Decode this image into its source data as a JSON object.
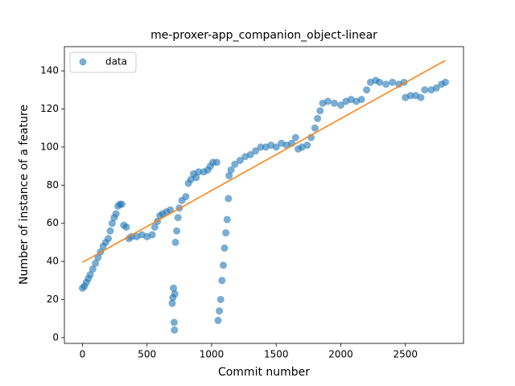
{
  "chart_data": {
    "type": "scatter",
    "title": "me-proxer-app_companion_object-linear",
    "x_label": "Commit number",
    "y_label": "Number of instance of a feature",
    "xlim": [
      -140,
      2950
    ],
    "ylim": [
      -3,
      152.7
    ],
    "xticks": [
      0,
      500,
      1000,
      1500,
      2000,
      2500
    ],
    "yticks": [
      0,
      20,
      40,
      60,
      80,
      100,
      120,
      140
    ],
    "legend": "upper left",
    "series": [
      {
        "name": "data",
        "color": "#1f77b4",
        "x": [
          0,
          15,
          30,
          45,
          60,
          80,
          100,
          120,
          140,
          160,
          180,
          200,
          215,
          230,
          245,
          260,
          275,
          290,
          305,
          320,
          340,
          360,
          380,
          420,
          460,
          500,
          540,
          560,
          580,
          600,
          620,
          650,
          680,
          695,
          700,
          705,
          710,
          712,
          715,
          720,
          730,
          740,
          750,
          770,
          800,
          820,
          840,
          860,
          880,
          900,
          940,
          970,
          990,
          1010,
          1040,
          1050,
          1060,
          1070,
          1080,
          1090,
          1100,
          1110,
          1120,
          1130,
          1135,
          1150,
          1180,
          1220,
          1260,
          1300,
          1340,
          1380,
          1420,
          1460,
          1500,
          1540,
          1580,
          1620,
          1650,
          1670,
          1700,
          1740,
          1770,
          1800,
          1820,
          1840,
          1860,
          1900,
          1950,
          2000,
          2040,
          2080,
          2120,
          2160,
          2200,
          2230,
          2270,
          2300,
          2350,
          2400,
          2450,
          2490,
          2500,
          2540,
          2580,
          2620,
          2650,
          2700,
          2740,
          2780,
          2810
        ],
        "values": [
          26,
          27,
          29,
          31,
          33,
          36,
          39,
          42,
          45,
          48,
          50,
          52,
          56,
          60,
          63,
          65,
          69,
          70,
          70,
          59,
          58,
          52,
          53,
          53,
          54,
          53,
          54,
          58,
          61,
          64,
          65,
          66,
          67,
          18,
          21,
          26,
          8,
          4,
          23,
          50,
          56,
          63,
          68,
          72,
          74,
          81,
          83,
          86,
          84,
          87,
          87,
          88,
          90,
          92,
          92,
          9,
          14,
          20,
          30,
          38,
          47,
          55,
          62,
          73,
          85,
          88,
          91,
          93,
          95,
          96,
          98,
          100,
          100,
          101,
          100,
          102,
          101,
          102,
          105,
          99,
          100,
          101,
          105,
          110,
          115,
          119,
          123,
          124,
          123,
          122,
          124,
          125,
          124,
          125,
          130,
          134,
          135,
          134,
          133,
          134,
          133,
          134,
          126,
          127,
          127,
          126,
          130,
          130,
          131,
          133,
          134
        ]
      },
      {
        "type": "line",
        "color": "#ff7f0e",
        "x": [
          0,
          2810
        ],
        "values": [
          39.5,
          145.5
        ]
      }
    ]
  }
}
